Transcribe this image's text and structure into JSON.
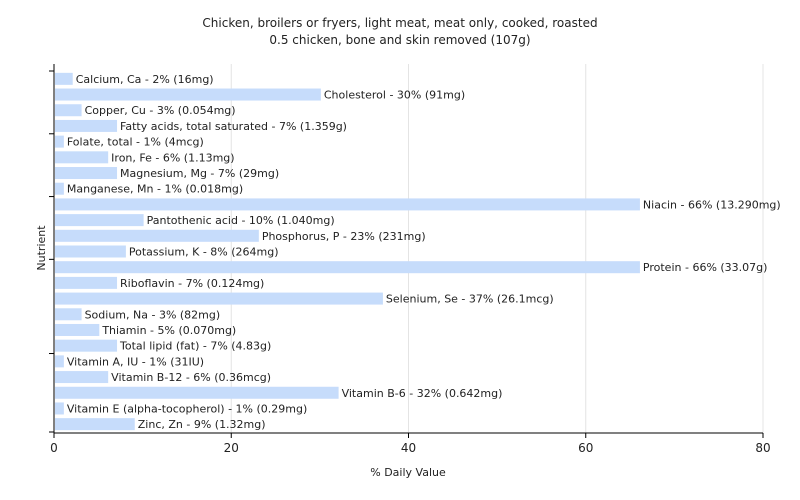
{
  "chart_data": {
    "type": "bar",
    "orientation": "horizontal",
    "title": "Chicken, broilers or fryers, light meat, meat only, cooked, roasted",
    "subtitle": "0.5 chicken, bone and skin removed (107g)",
    "xlabel": "% Daily Value",
    "ylabel": "Nutrient",
    "xlim": [
      0,
      80
    ],
    "xticks": [
      0,
      20,
      40,
      60,
      80
    ],
    "grid": true,
    "bar_color": "#c6dcfb",
    "categories": [
      "Calcium, Ca",
      "Cholesterol",
      "Copper, Cu",
      "Fatty acids, total saturated",
      "Folate, total",
      "Iron, Fe",
      "Magnesium, Mg",
      "Manganese, Mn",
      "Niacin",
      "Pantothenic acid",
      "Phosphorus, P",
      "Potassium, K",
      "Protein",
      "Riboflavin",
      "Selenium, Se",
      "Sodium, Na",
      "Thiamin",
      "Total lipid (fat)",
      "Vitamin A, IU",
      "Vitamin B-12",
      "Vitamin B-6",
      "Vitamin E (alpha-tocopherol)",
      "Zinc, Zn"
    ],
    "values": [
      2,
      30,
      3,
      7,
      1,
      6,
      7,
      1,
      66,
      10,
      23,
      8,
      66,
      7,
      37,
      3,
      5,
      7,
      1,
      6,
      32,
      1,
      9
    ],
    "labels": [
      "Calcium, Ca - 2% (16mg)",
      "Cholesterol - 30% (91mg)",
      "Copper, Cu - 3% (0.054mg)",
      "Fatty acids, total saturated - 7% (1.359g)",
      "Folate, total - 1% (4mcg)",
      "Iron, Fe - 6% (1.13mg)",
      "Magnesium, Mg - 7% (29mg)",
      "Manganese, Mn - 1% (0.018mg)",
      "Niacin - 66% (13.290mg)",
      "Pantothenic acid - 10% (1.040mg)",
      "Phosphorus, P - 23% (231mg)",
      "Potassium, K - 8% (264mg)",
      "Protein - 66% (33.07g)",
      "Riboflavin - 7% (0.124mg)",
      "Selenium, Se - 37% (26.1mcg)",
      "Sodium, Na - 3% (82mg)",
      "Thiamin - 5% (0.070mg)",
      "Total lipid (fat) - 7% (4.83g)",
      "Vitamin A, IU - 1% (31IU)",
      "Vitamin B-12 - 6% (0.36mcg)",
      "Vitamin B-6 - 32% (0.642mg)",
      "Vitamin E (alpha-tocopherol) - 1% (0.29mg)",
      "Zinc, Zn - 9% (1.32mg)"
    ]
  }
}
